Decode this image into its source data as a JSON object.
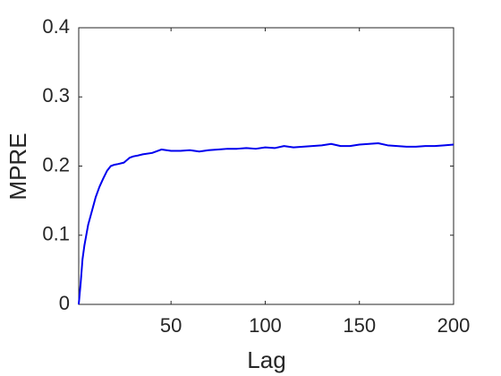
{
  "chart_data": {
    "type": "line",
    "x_label": "Lag",
    "y_label": "MPRE",
    "x": [
      1,
      2,
      3,
      4,
      5,
      6,
      8,
      10,
      12,
      14,
      16,
      18,
      20,
      22,
      25,
      28,
      30,
      32,
      35,
      40,
      45,
      50,
      55,
      60,
      65,
      70,
      75,
      80,
      85,
      90,
      95,
      100,
      105,
      110,
      115,
      120,
      125,
      130,
      135,
      140,
      145,
      150,
      155,
      160,
      165,
      170,
      175,
      180,
      185,
      190,
      195,
      200
    ],
    "values": [
      0,
      0.03,
      0.065,
      0.085,
      0.1,
      0.115,
      0.135,
      0.155,
      0.17,
      0.182,
      0.193,
      0.2,
      0.202,
      0.203,
      0.205,
      0.212,
      0.214,
      0.215,
      0.217,
      0.219,
      0.224,
      0.222,
      0.222,
      0.223,
      0.221,
      0.223,
      0.224,
      0.225,
      0.225,
      0.226,
      0.225,
      0.227,
      0.226,
      0.229,
      0.227,
      0.228,
      0.229,
      0.23,
      0.232,
      0.229,
      0.229,
      0.231,
      0.232,
      0.233,
      0.23,
      0.229,
      0.228,
      0.228,
      0.229,
      0.229,
      0.23,
      0.231
    ],
    "color": "#0000ee",
    "xlim": [
      1,
      200
    ],
    "ylim": [
      0,
      0.4
    ],
    "xticks": [
      50,
      100,
      150,
      200
    ],
    "yticks": [
      0,
      0.1,
      0.2,
      0.3,
      0.4
    ],
    "grid": false
  }
}
